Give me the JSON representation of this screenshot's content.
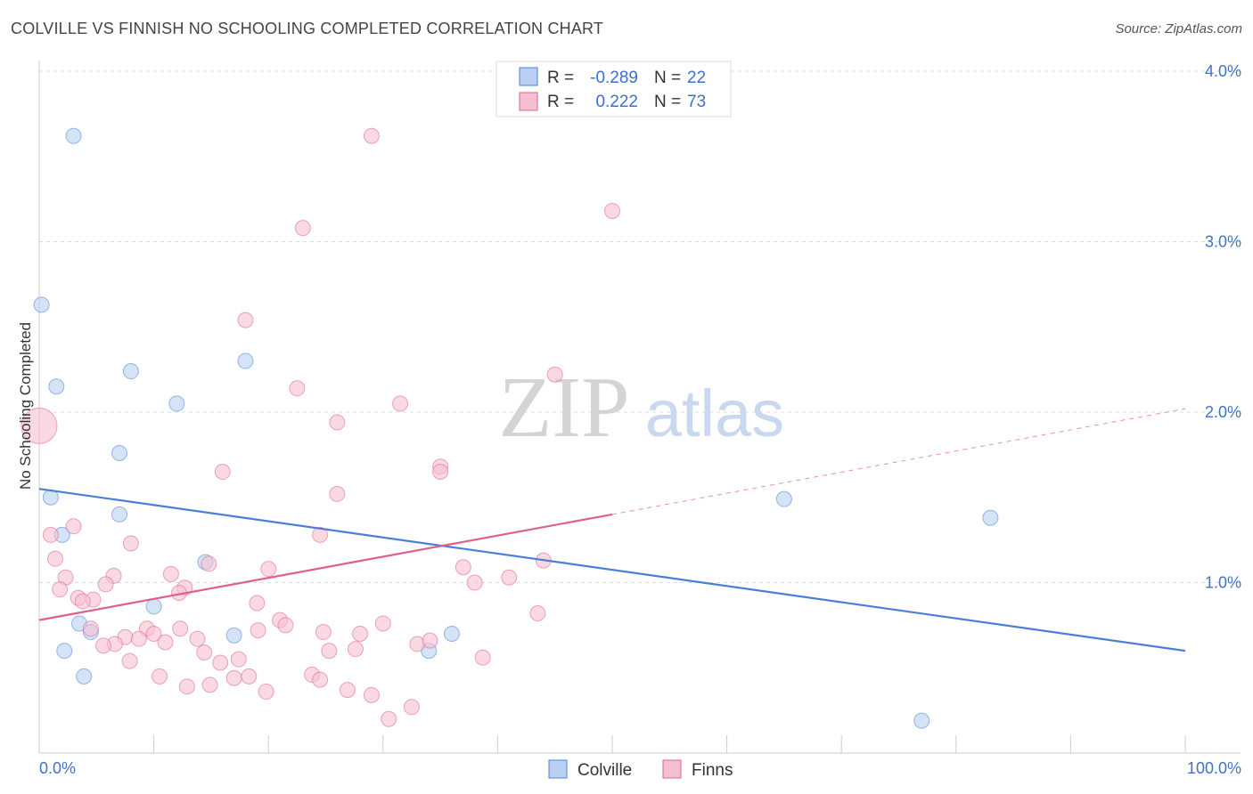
{
  "title": "COLVILLE VS FINNISH NO SCHOOLING COMPLETED CORRELATION CHART",
  "source": "Source: ZipAtlas.com",
  "watermark": {
    "zip": "ZIP",
    "atlas": "atlas"
  },
  "stats": [
    {
      "series": "Colville",
      "r_label": "R =",
      "r_value": "-0.289",
      "n_label": "N =",
      "n_value": "22"
    },
    {
      "series": "Finns",
      "r_label": "R =",
      "r_value": "0.222",
      "n_label": "N =",
      "n_value": "73"
    }
  ],
  "chart_data": {
    "type": "scatter",
    "title": "COLVILLE VS FINNISH NO SCHOOLING COMPLETED CORRELATION CHART",
    "xlabel": "",
    "ylabel": "No Schooling Completed",
    "xlim": [
      0,
      100
    ],
    "ylim": [
      0,
      4.0
    ],
    "x_tick_labels": [
      "0.0%",
      "100.0%"
    ],
    "y_ticks": [
      1.0,
      2.0,
      3.0,
      4.0
    ],
    "y_tick_labels": [
      "1.0%",
      "2.0%",
      "3.0%",
      "4.0%"
    ],
    "grid": true,
    "legend": [
      "Colville",
      "Finns"
    ],
    "legend_position": "bottom-center",
    "colors": {
      "Colville": "#4a7fd8",
      "Finns": "#e0608c",
      "Colville_fill": "#b9d0f2",
      "Finns_fill": "#f6bfd1"
    },
    "series": [
      {
        "name": "Colville",
        "trend": {
          "x0": 0,
          "y0": 1.55,
          "x1": 100,
          "y1": 0.6,
          "solid_until": 100
        },
        "points": [
          [
            3,
            3.62
          ],
          [
            0.2,
            2.63
          ],
          [
            1.5,
            2.15
          ],
          [
            8,
            2.24
          ],
          [
            18,
            2.3
          ],
          [
            12,
            2.05
          ],
          [
            7,
            1.76
          ],
          [
            1,
            1.5
          ],
          [
            7,
            1.4
          ],
          [
            2,
            1.28
          ],
          [
            14.5,
            1.12
          ],
          [
            10,
            0.86
          ],
          [
            3.5,
            0.76
          ],
          [
            4.5,
            0.71
          ],
          [
            17,
            0.69
          ],
          [
            36,
            0.7
          ],
          [
            2.2,
            0.6
          ],
          [
            34,
            0.6
          ],
          [
            3.9,
            0.45
          ],
          [
            65,
            1.49
          ],
          [
            83,
            1.38
          ],
          [
            77,
            0.19
          ]
        ]
      },
      {
        "name": "Finns",
        "trend": {
          "x0": 0,
          "y0": 0.78,
          "x1": 100,
          "y1": 2.02,
          "solid_until": 50
        },
        "points": [
          [
            29,
            3.62
          ],
          [
            50,
            3.18
          ],
          [
            23,
            3.08
          ],
          [
            18,
            2.54
          ],
          [
            45,
            2.22
          ],
          [
            22.5,
            2.14
          ],
          [
            31.5,
            2.05
          ],
          [
            26,
            1.94
          ],
          [
            0,
            1.92
          ],
          [
            16,
            1.65
          ],
          [
            35,
            1.68
          ],
          [
            35,
            1.65
          ],
          [
            26,
            1.52
          ],
          [
            3,
            1.33
          ],
          [
            1,
            1.28
          ],
          [
            8,
            1.23
          ],
          [
            24.5,
            1.28
          ],
          [
            1.4,
            1.14
          ],
          [
            44,
            1.13
          ],
          [
            14.8,
            1.11
          ],
          [
            20,
            1.08
          ],
          [
            37,
            1.09
          ],
          [
            2.3,
            1.03
          ],
          [
            6.5,
            1.04
          ],
          [
            11.5,
            1.05
          ],
          [
            41,
            1.03
          ],
          [
            5.8,
            0.99
          ],
          [
            38,
            1.0
          ],
          [
            12.7,
            0.97
          ],
          [
            1.8,
            0.96
          ],
          [
            12.2,
            0.94
          ],
          [
            3.4,
            0.91
          ],
          [
            4.7,
            0.9
          ],
          [
            3.8,
            0.89
          ],
          [
            19,
            0.88
          ],
          [
            43.5,
            0.82
          ],
          [
            21,
            0.78
          ],
          [
            21.5,
            0.75
          ],
          [
            30,
            0.76
          ],
          [
            4.5,
            0.73
          ],
          [
            12.3,
            0.73
          ],
          [
            19.1,
            0.72
          ],
          [
            9.4,
            0.73
          ],
          [
            10,
            0.7
          ],
          [
            24.8,
            0.71
          ],
          [
            28,
            0.7
          ],
          [
            7.5,
            0.68
          ],
          [
            8.7,
            0.67
          ],
          [
            13.8,
            0.67
          ],
          [
            6.6,
            0.64
          ],
          [
            11,
            0.65
          ],
          [
            5.6,
            0.63
          ],
          [
            33,
            0.64
          ],
          [
            34.1,
            0.66
          ],
          [
            27.6,
            0.61
          ],
          [
            25.3,
            0.6
          ],
          [
            14.4,
            0.59
          ],
          [
            38.7,
            0.56
          ],
          [
            7.9,
            0.54
          ],
          [
            17.4,
            0.55
          ],
          [
            15.8,
            0.53
          ],
          [
            23.8,
            0.46
          ],
          [
            24.5,
            0.43
          ],
          [
            10.5,
            0.45
          ],
          [
            17,
            0.44
          ],
          [
            18.3,
            0.45
          ],
          [
            14.9,
            0.4
          ],
          [
            12.9,
            0.39
          ],
          [
            19.8,
            0.36
          ],
          [
            26.9,
            0.37
          ],
          [
            29,
            0.34
          ],
          [
            32.5,
            0.27
          ],
          [
            30.5,
            0.2
          ]
        ]
      }
    ]
  }
}
